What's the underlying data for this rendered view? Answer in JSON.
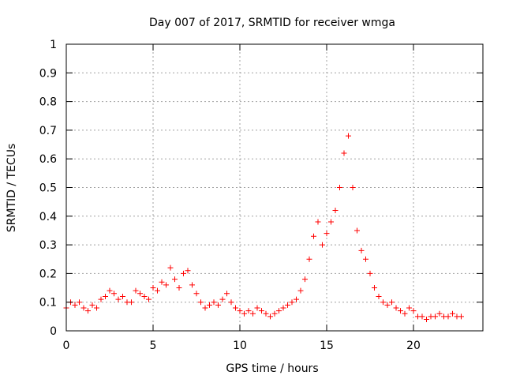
{
  "chart_data": {
    "type": "scatter",
    "title": "Day 007 of 2017, SRMTID for receiver wmga",
    "xlabel": "GPS time / hours",
    "ylabel": "SRMTID / TECUs",
    "xlim": [
      0,
      24
    ],
    "ylim": [
      0,
      1
    ],
    "x_ticks": [
      "0",
      "5",
      "10",
      "15",
      "20"
    ],
    "x_tick_values": [
      0,
      5,
      10,
      15,
      20
    ],
    "y_ticks": [
      "0",
      "0.1",
      "0.2",
      "0.3",
      "0.4",
      "0.5",
      "0.6",
      "0.7",
      "0.8",
      "0.9",
      "1"
    ],
    "y_tick_values": [
      0,
      0.1,
      0.2,
      0.3,
      0.4,
      0.5,
      0.6,
      0.7,
      0.8,
      0.9,
      1
    ],
    "grid": true,
    "marker": "+",
    "marker_color": "#ff0000",
    "series": [
      {
        "name": "SRMTID",
        "x": [
          0.0,
          0.25,
          0.5,
          0.75,
          1.0,
          1.25,
          1.5,
          1.75,
          2.0,
          2.25,
          2.5,
          2.75,
          3.0,
          3.25,
          3.5,
          3.75,
          4.0,
          4.25,
          4.5,
          4.75,
          5.0,
          5.25,
          5.5,
          5.75,
          6.0,
          6.25,
          6.5,
          6.75,
          7.0,
          7.25,
          7.5,
          7.75,
          8.0,
          8.25,
          8.5,
          8.75,
          9.0,
          9.25,
          9.5,
          9.75,
          10.0,
          10.25,
          10.5,
          10.75,
          11.0,
          11.25,
          11.5,
          11.75,
          12.0,
          12.25,
          12.5,
          12.75,
          13.0,
          13.25,
          13.5,
          13.75,
          14.0,
          14.25,
          14.5,
          14.75,
          15.0,
          15.25,
          15.5,
          15.75,
          16.0,
          16.25,
          16.5,
          16.75,
          17.0,
          17.25,
          17.5,
          17.75,
          18.0,
          18.25,
          18.5,
          18.75,
          19.0,
          19.25,
          19.5,
          19.75,
          20.0,
          20.25,
          20.5,
          20.75,
          21.0,
          21.25,
          21.5,
          21.75,
          22.0,
          22.25,
          22.5,
          22.75
        ],
        "y": [
          0.08,
          0.1,
          0.09,
          0.1,
          0.08,
          0.07,
          0.09,
          0.08,
          0.11,
          0.12,
          0.14,
          0.13,
          0.11,
          0.12,
          0.1,
          0.1,
          0.14,
          0.13,
          0.12,
          0.11,
          0.15,
          0.14,
          0.17,
          0.16,
          0.22,
          0.18,
          0.15,
          0.2,
          0.21,
          0.16,
          0.13,
          0.1,
          0.08,
          0.09,
          0.1,
          0.09,
          0.11,
          0.13,
          0.1,
          0.08,
          0.07,
          0.06,
          0.07,
          0.06,
          0.08,
          0.07,
          0.06,
          0.05,
          0.06,
          0.07,
          0.08,
          0.09,
          0.1,
          0.11,
          0.14,
          0.18,
          0.25,
          0.33,
          0.38,
          0.3,
          0.34,
          0.38,
          0.42,
          0.5,
          0.62,
          0.68,
          0.5,
          0.35,
          0.28,
          0.25,
          0.2,
          0.15,
          0.12,
          0.1,
          0.09,
          0.1,
          0.08,
          0.07,
          0.06,
          0.08,
          0.07,
          0.05,
          0.05,
          0.04,
          0.05,
          0.05,
          0.06,
          0.05,
          0.05,
          0.06,
          0.05,
          0.05
        ]
      }
    ]
  }
}
